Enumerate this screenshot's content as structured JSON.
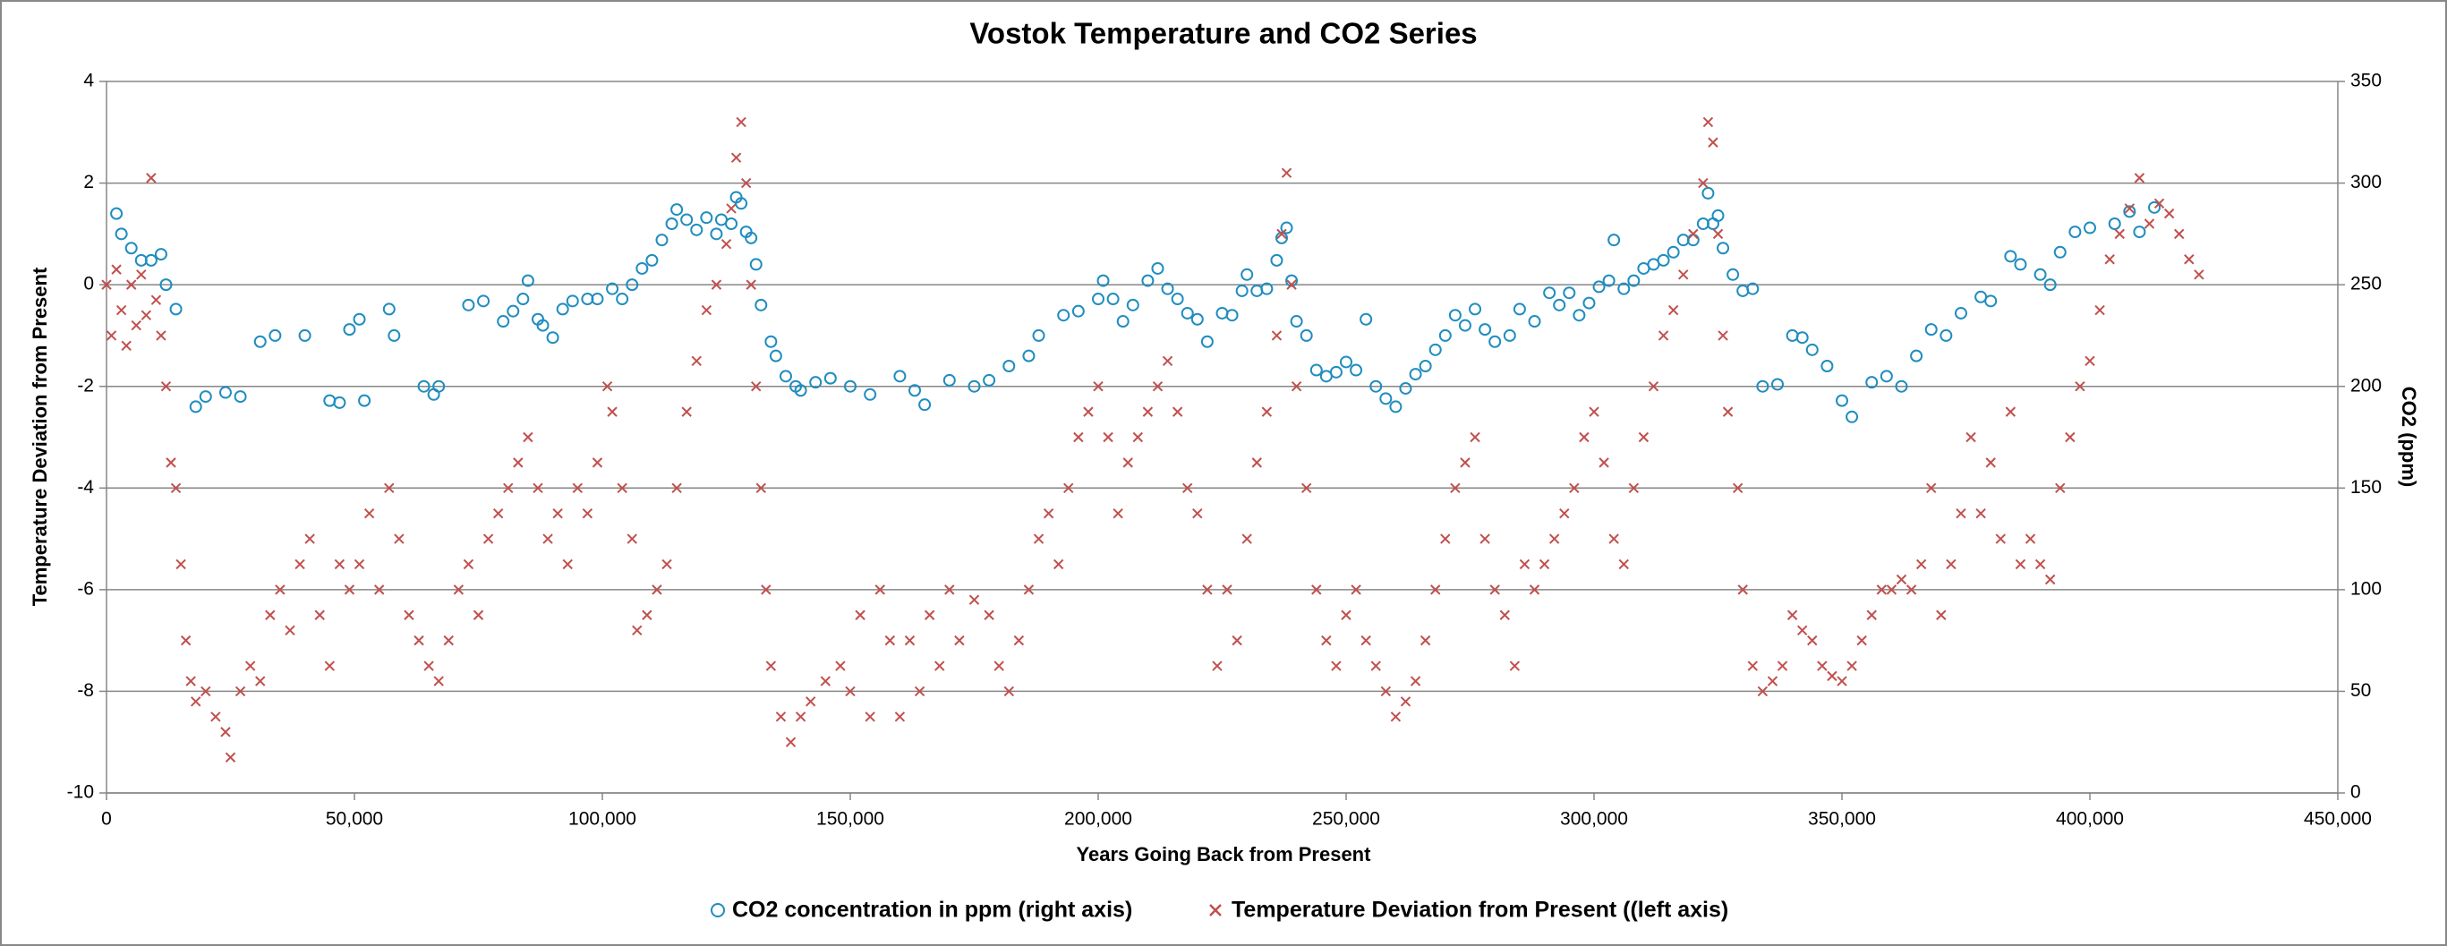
{
  "chart_data": {
    "type": "scatter",
    "title": "Vostok Temperature and CO2 Series",
    "xlabel": "Years Going Back from Present",
    "ylabel": "Temperature Deviation from Present",
    "y2label": "CO2 (ppm)",
    "xlim": [
      0,
      450000
    ],
    "xticks": [
      0,
      {
        "value": 50000,
        "label": "50,000"
      },
      {
        "value": 100000,
        "label": "100,000"
      },
      {
        "value": 150000,
        "label": "150,000"
      },
      {
        "value": 200000,
        "label": "200,000"
      },
      {
        "value": 250000,
        "label": "250,000"
      },
      {
        "value": 300000,
        "label": "300,000"
      },
      {
        "value": 350000,
        "label": "350,000"
      },
      {
        "value": 400000,
        "label": "400,000"
      },
      {
        "value": 450000,
        "label": "450,000"
      }
    ],
    "ylim": [
      -10,
      4
    ],
    "yticks": [
      -10,
      -8,
      -6,
      -4,
      -2,
      0,
      2,
      4
    ],
    "y2lim": [
      0,
      350
    ],
    "y2ticks": [
      0,
      50,
      100,
      150,
      200,
      250,
      300,
      350
    ],
    "grid": true,
    "legend": "bottom",
    "series": [
      {
        "name": "CO2 concentration in ppm (right axis)",
        "color": "#1f8dbf",
        "marker": "circle",
        "axis": "y2",
        "x": [
          2000,
          3000,
          5000,
          7000,
          9000,
          11000,
          12000,
          14000,
          18000,
          20000,
          24000,
          27000,
          31000,
          34000,
          40000,
          45000,
          47000,
          49000,
          51000,
          52000,
          57000,
          58000,
          64000,
          66000,
          67000,
          73000,
          76000,
          80000,
          82000,
          84000,
          85000,
          87000,
          88000,
          90000,
          92000,
          94000,
          97000,
          99000,
          102000,
          104000,
          106000,
          108000,
          110000,
          112000,
          114000,
          115000,
          117000,
          119000,
          121000,
          123000,
          124000,
          126000,
          127000,
          128000,
          129000,
          130000,
          131000,
          132000,
          134000,
          135000,
          137000,
          139000,
          140000,
          143000,
          146000,
          150000,
          154000,
          160000,
          163000,
          165000,
          170000,
          175000,
          178000,
          182000,
          186000,
          188000,
          193000,
          196000,
          200000,
          201000,
          203000,
          205000,
          207000,
          210000,
          212000,
          214000,
          216000,
          218000,
          220000,
          222000,
          225000,
          227000,
          229000,
          230000,
          232000,
          234000,
          236000,
          237000,
          238000,
          239000,
          240000,
          242000,
          244000,
          246000,
          248000,
          250000,
          252000,
          254000,
          256000,
          258000,
          260000,
          262000,
          264000,
          266000,
          268000,
          270000,
          272000,
          274000,
          276000,
          278000,
          280000,
          283000,
          285000,
          288000,
          291000,
          293000,
          295000,
          297000,
          299000,
          301000,
          303000,
          304000,
          306000,
          308000,
          310000,
          312000,
          314000,
          316000,
          318000,
          320000,
          322000,
          323000,
          324000,
          325000,
          326000,
          328000,
          330000,
          332000,
          334000,
          337000,
          340000,
          342000,
          344000,
          347000,
          350000,
          352000,
          356000,
          359000,
          362000,
          365000,
          368000,
          371000,
          374000,
          378000,
          380000,
          384000,
          386000,
          390000,
          392000,
          394000,
          397000,
          400000,
          405000,
          408000,
          410000,
          413000
        ],
        "values": [
          285,
          275,
          268,
          262,
          262,
          265,
          250,
          238,
          190,
          195,
          197,
          195,
          222,
          225,
          225,
          193,
          192,
          228,
          233,
          193,
          238,
          225,
          200,
          196,
          200,
          240,
          242,
          232,
          237,
          243,
          252,
          233,
          230,
          224,
          238,
          242,
          243,
          243,
          248,
          243,
          250,
          258,
          262,
          272,
          280,
          287,
          282,
          277,
          283,
          275,
          282,
          280,
          293,
          290,
          276,
          273,
          260,
          240,
          222,
          215,
          205,
          200,
          198,
          202,
          204,
          200,
          196,
          205,
          198,
          191,
          203,
          200,
          203,
          210,
          215,
          225,
          235,
          237,
          243,
          252,
          243,
          232,
          240,
          252,
          258,
          248,
          243,
          236,
          233,
          222,
          236,
          235,
          247,
          255,
          247,
          248,
          262,
          273,
          278,
          252,
          232,
          225,
          208,
          205,
          207,
          212,
          208,
          233,
          200,
          194,
          190,
          199,
          206,
          210,
          218,
          225,
          235,
          230,
          238,
          228,
          222,
          225,
          238,
          232,
          246,
          240,
          246,
          235,
          241,
          249,
          252,
          272,
          248,
          252,
          258,
          260,
          262,
          266,
          272,
          272,
          280,
          295,
          280,
          284,
          268,
          255,
          247,
          248,
          200,
          201,
          225,
          224,
          218,
          210,
          193,
          185,
          202,
          205,
          200,
          215,
          228,
          225,
          236,
          244,
          242,
          264,
          260,
          255,
          250,
          266,
          276,
          278,
          280,
          286,
          276,
          288
        ]
      },
      {
        "name": "Temperature Deviation from Present ((left axis)",
        "color": "#c0504d",
        "marker": "x",
        "axis": "y",
        "x": [
          0,
          1000,
          2000,
          3000,
          4000,
          5000,
          6000,
          7000,
          8000,
          9000,
          10000,
          11000,
          12000,
          13000,
          14000,
          15000,
          16000,
          17000,
          18000,
          20000,
          22000,
          24000,
          25000,
          27000,
          29000,
          31000,
          33000,
          35000,
          37000,
          39000,
          41000,
          43000,
          45000,
          47000,
          49000,
          51000,
          53000,
          55000,
          57000,
          59000,
          61000,
          63000,
          65000,
          67000,
          69000,
          71000,
          73000,
          75000,
          77000,
          79000,
          81000,
          83000,
          85000,
          87000,
          89000,
          91000,
          93000,
          95000,
          97000,
          99000,
          101000,
          102000,
          104000,
          106000,
          107000,
          109000,
          111000,
          113000,
          115000,
          117000,
          119000,
          121000,
          123000,
          125000,
          126000,
          127000,
          128000,
          129000,
          130000,
          131000,
          132000,
          133000,
          134000,
          136000,
          138000,
          140000,
          142000,
          145000,
          148000,
          150000,
          152000,
          154000,
          156000,
          158000,
          160000,
          162000,
          164000,
          166000,
          168000,
          170000,
          172000,
          175000,
          178000,
          180000,
          182000,
          184000,
          186000,
          188000,
          190000,
          192000,
          194000,
          196000,
          198000,
          200000,
          202000,
          204000,
          206000,
          208000,
          210000,
          212000,
          214000,
          216000,
          218000,
          220000,
          222000,
          224000,
          226000,
          228000,
          230000,
          232000,
          234000,
          236000,
          237000,
          238000,
          239000,
          240000,
          242000,
          244000,
          246000,
          248000,
          250000,
          252000,
          254000,
          256000,
          258000,
          260000,
          262000,
          264000,
          266000,
          268000,
          270000,
          272000,
          274000,
          276000,
          278000,
          280000,
          282000,
          284000,
          286000,
          288000,
          290000,
          292000,
          294000,
          296000,
          298000,
          300000,
          302000,
          304000,
          306000,
          308000,
          310000,
          312000,
          314000,
          316000,
          318000,
          320000,
          322000,
          323000,
          324000,
          325000,
          326000,
          327000,
          329000,
          330000,
          332000,
          334000,
          336000,
          338000,
          340000,
          342000,
          344000,
          346000,
          348000,
          350000,
          352000,
          354000,
          356000,
          358000,
          360000,
          362000,
          364000,
          366000,
          368000,
          370000,
          372000,
          374000,
          376000,
          378000,
          380000,
          382000,
          384000,
          386000,
          388000,
          390000,
          392000,
          394000,
          396000,
          398000,
          400000,
          402000,
          404000,
          406000,
          408000,
          410000,
          412000,
          414000,
          416000,
          418000,
          420000,
          422000
        ],
        "values": [
          0,
          -1,
          0.3,
          -0.5,
          -1.2,
          0,
          -0.8,
          0.2,
          -0.6,
          2.1,
          -0.3,
          -1,
          -2,
          -3.5,
          -4,
          -5.5,
          -7,
          -7.8,
          -8.2,
          -8,
          -8.5,
          -8.8,
          -9.3,
          -8,
          -7.5,
          -7.8,
          -6.5,
          -6,
          -6.8,
          -5.5,
          -5,
          -6.5,
          -7.5,
          -5.5,
          -6,
          -5.5,
          -4.5,
          -6,
          -4,
          -5,
          -6.5,
          -7,
          -7.5,
          -7.8,
          -7,
          -6,
          -5.5,
          -6.5,
          -5,
          -4.5,
          -4,
          -3.5,
          -3,
          -4,
          -5,
          -4.5,
          -5.5,
          -4,
          -4.5,
          -3.5,
          -2,
          -2.5,
          -4,
          -5,
          -6.8,
          -6.5,
          -6,
          -5.5,
          -4,
          -2.5,
          -1.5,
          -0.5,
          0,
          0.8,
          1.5,
          2.5,
          3.2,
          2,
          0,
          -2,
          -4,
          -6,
          -7.5,
          -8.5,
          -9,
          -8.5,
          -8.2,
          -7.8,
          -7.5,
          -8,
          -6.5,
          -8.5,
          -6,
          -7,
          -8.5,
          -7,
          -8,
          -6.5,
          -7.5,
          -6,
          -7,
          -6.2,
          -6.5,
          -7.5,
          -8,
          -7,
          -6,
          -5,
          -4.5,
          -5.5,
          -4,
          -3,
          -2.5,
          -2,
          -3,
          -4.5,
          -3.5,
          -3,
          -2.5,
          -2,
          -1.5,
          -2.5,
          -4,
          -4.5,
          -6,
          -7.5,
          -6,
          -7,
          -5,
          -3.5,
          -2.5,
          -1,
          1,
          2.2,
          0,
          -2,
          -4,
          -6,
          -7,
          -7.5,
          -6.5,
          -6,
          -7,
          -7.5,
          -8,
          -8.5,
          -8.2,
          -7.8,
          -7,
          -6,
          -5,
          -4,
          -3.5,
          -3,
          -5,
          -6,
          -6.5,
          -7.5,
          -5.5,
          -6,
          -5.5,
          -5,
          -4.5,
          -4,
          -3,
          -2.5,
          -3.5,
          -5,
          -5.5,
          -4,
          -3,
          -2,
          -1,
          -0.5,
          0.2,
          1,
          2,
          3.2,
          2.8,
          1,
          -1,
          -2.5,
          -4,
          -6,
          -7.5,
          -8,
          -7.8,
          -7.5,
          -6.5,
          -6.8,
          -7,
          -7.5,
          -7.7,
          -7.8,
          -7.5,
          -7,
          -6.5,
          -6,
          -6,
          -5.8,
          -6,
          -5.5,
          -4,
          -6.5,
          -5.5,
          -4.5,
          -3,
          -4.5,
          -3.5,
          -5,
          -2.5,
          -5.5,
          -5,
          -5.5,
          -5.8,
          -4,
          -3,
          -2,
          -1.5,
          -0.5,
          0.5,
          1,
          1.5,
          2.1,
          1.2,
          1.6,
          1.4,
          1,
          0.5,
          0.2
        ]
      }
    ]
  }
}
